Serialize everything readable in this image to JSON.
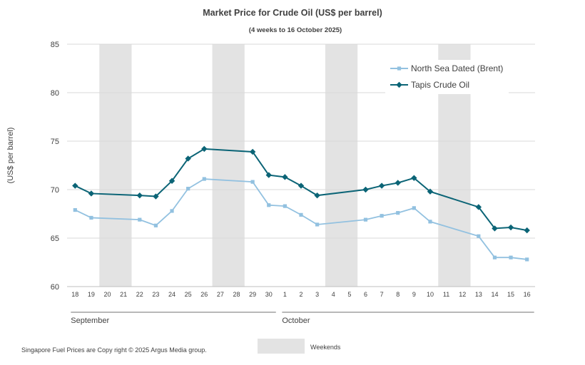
{
  "chart_data": {
    "type": "line",
    "title": "Market Price for Crude  Oil (US$ per barrel)",
    "subtitle": "(4 weeks to 16 October 2025)",
    "ylabel": "(US$ per barrel)",
    "xlabel": "",
    "ylim": [
      60,
      85
    ],
    "yticks": [
      60,
      65,
      70,
      75,
      80,
      85
    ],
    "categories": [
      "18",
      "19",
      "20",
      "21",
      "22",
      "23",
      "24",
      "25",
      "26",
      "27",
      "28",
      "29",
      "30",
      "1",
      "2",
      "3",
      "4",
      "5",
      "6",
      "7",
      "8",
      "9",
      "10",
      "11",
      "12",
      "13",
      "14",
      "15",
      "16"
    ],
    "weekend_ranges": [
      [
        "20",
        "21"
      ],
      [
        "27",
        "28"
      ],
      [
        "4",
        "5"
      ],
      [
        "11",
        "12"
      ]
    ],
    "month_labels": [
      {
        "label": "September",
        "from": "18",
        "to": "30"
      },
      {
        "label": "October",
        "from": "1",
        "to": "16"
      }
    ],
    "series": [
      {
        "name": "North Sea Dated (Brent)",
        "color": "#92C1E0",
        "marker": "square",
        "values": [
          67.9,
          67.1,
          null,
          null,
          66.9,
          66.3,
          67.8,
          70.1,
          71.1,
          null,
          null,
          70.8,
          68.4,
          68.3,
          67.4,
          66.4,
          null,
          null,
          66.9,
          67.3,
          67.6,
          68.1,
          66.7,
          null,
          null,
          65.2,
          63.0,
          63.0,
          62.8
        ]
      },
      {
        "name": "Tapis Crude Oil",
        "color": "#0B6476",
        "marker": "diamond",
        "values": [
          70.4,
          69.6,
          null,
          null,
          69.4,
          69.3,
          70.9,
          73.2,
          74.2,
          null,
          null,
          73.9,
          71.5,
          71.3,
          70.4,
          69.4,
          null,
          null,
          70.0,
          70.4,
          70.7,
          71.2,
          69.8,
          null,
          null,
          68.2,
          66.0,
          66.1,
          65.8
        ]
      }
    ],
    "legend_position": "top-right",
    "grid": true,
    "footnote": "Singapore  Fuel Prices are  Copy right © 2025 Argus Media  group.",
    "weekends_label": "Weekends",
    "weekend_color": "#E3E3E3"
  }
}
